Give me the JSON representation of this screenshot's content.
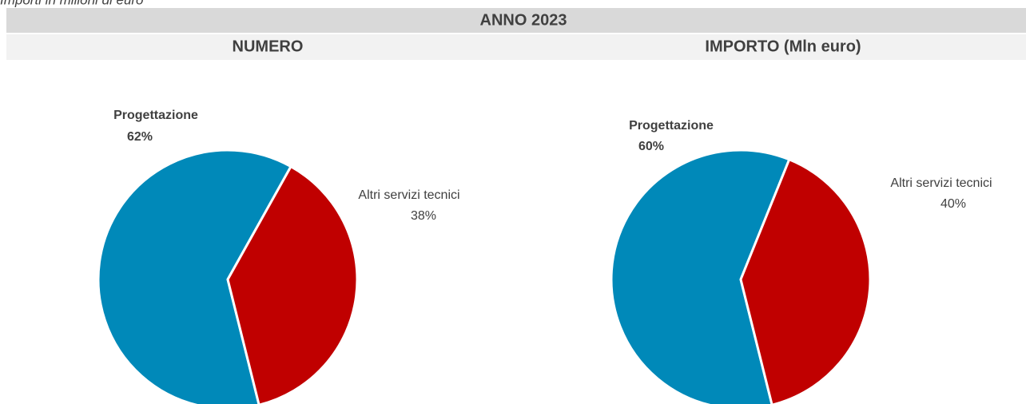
{
  "note": "Importi in milioni di euro",
  "header": "ANNO 2023",
  "chart_data": [
    {
      "type": "pie",
      "title": "NUMERO",
      "categories": [
        "Progettazione",
        "Altri servizi tecnici"
      ],
      "values": [
        62,
        38
      ],
      "value_labels": [
        "62%",
        "38%"
      ],
      "colors": [
        "#0089b9",
        "#c00000"
      ]
    },
    {
      "type": "pie",
      "title": "IMPORTO (Mln euro)",
      "categories": [
        "Progettazione",
        "Altri servizi tecnici"
      ],
      "values": [
        60,
        40
      ],
      "value_labels": [
        "60%",
        "40%"
      ],
      "colors": [
        "#0089b9",
        "#c00000"
      ]
    }
  ]
}
